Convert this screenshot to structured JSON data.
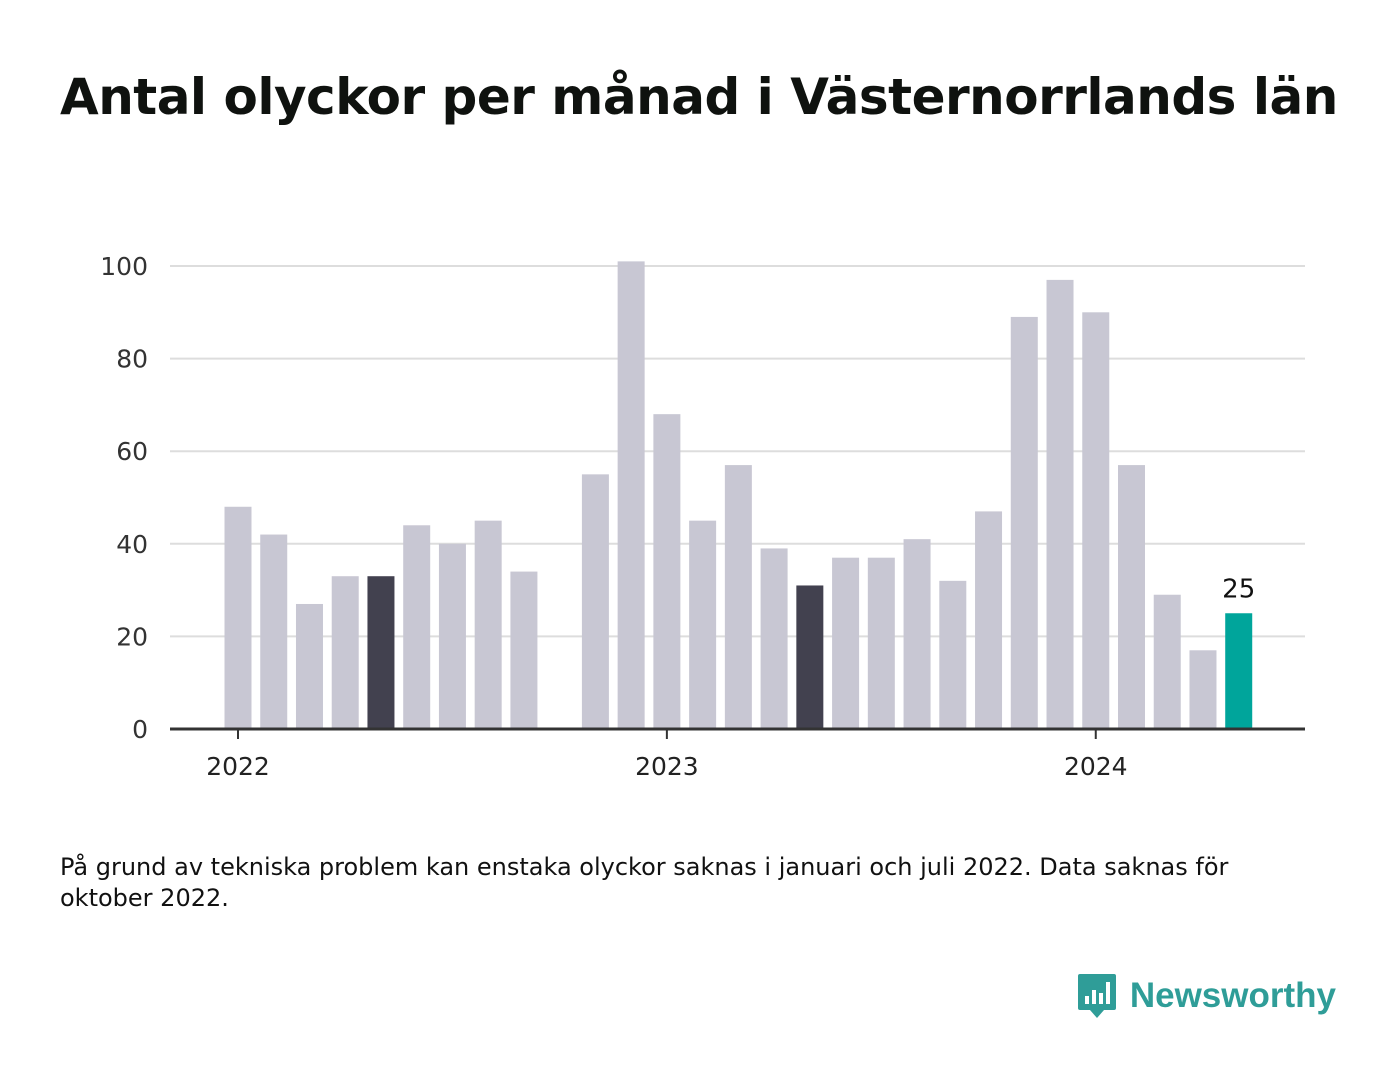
{
  "title": "Antal olyckor per månad i Västernorrlands län",
  "note": "På grund av tekniska problem kan enstaka olyckor saknas i januari och juli 2022. Data saknas för oktober 2022.",
  "brand": {
    "name": "Newsworthy",
    "icon": "newsworthy-logo-icon",
    "color": "#2f9d98"
  },
  "colors": {
    "default": "#c8c7d3",
    "highlight_dark": "#42414f",
    "highlight_current": "#00a59b",
    "grid": "#dddddd",
    "axis": "#333333"
  },
  "chart_data": {
    "type": "bar",
    "title": "Antal olyckor per månad i Västernorrlands län",
    "xlabel": "",
    "ylabel": "",
    "ylim": [
      0,
      100
    ],
    "y_ticks": [
      "0",
      "20",
      "40",
      "60",
      "80",
      "100"
    ],
    "x_ticks": [
      {
        "label": "2022",
        "month": "2022-01"
      },
      {
        "label": "2023",
        "month": "2023-01"
      },
      {
        "label": "2024",
        "month": "2024-01"
      }
    ],
    "grid": true,
    "categories": [
      "2022-01",
      "2022-02",
      "2022-03",
      "2022-04",
      "2022-05",
      "2022-06",
      "2022-07",
      "2022-08",
      "2022-09",
      "2022-10",
      "2022-11",
      "2022-12",
      "2023-01",
      "2023-02",
      "2023-03",
      "2023-04",
      "2023-05",
      "2023-06",
      "2023-07",
      "2023-08",
      "2023-09",
      "2023-10",
      "2023-11",
      "2023-12",
      "2024-01",
      "2024-02",
      "2024-03",
      "2024-04",
      "2024-05"
    ],
    "values": [
      48,
      42,
      27,
      33,
      33,
      44,
      40,
      45,
      34,
      null,
      55,
      101,
      68,
      45,
      57,
      39,
      31,
      37,
      37,
      41,
      32,
      47,
      89,
      97,
      90,
      57,
      29,
      17,
      25
    ],
    "highlights": {
      "2022-05": "dark",
      "2023-05": "dark",
      "2024-05": "current"
    },
    "data_labels": [
      {
        "month": "2024-05",
        "label": "25"
      }
    ]
  }
}
